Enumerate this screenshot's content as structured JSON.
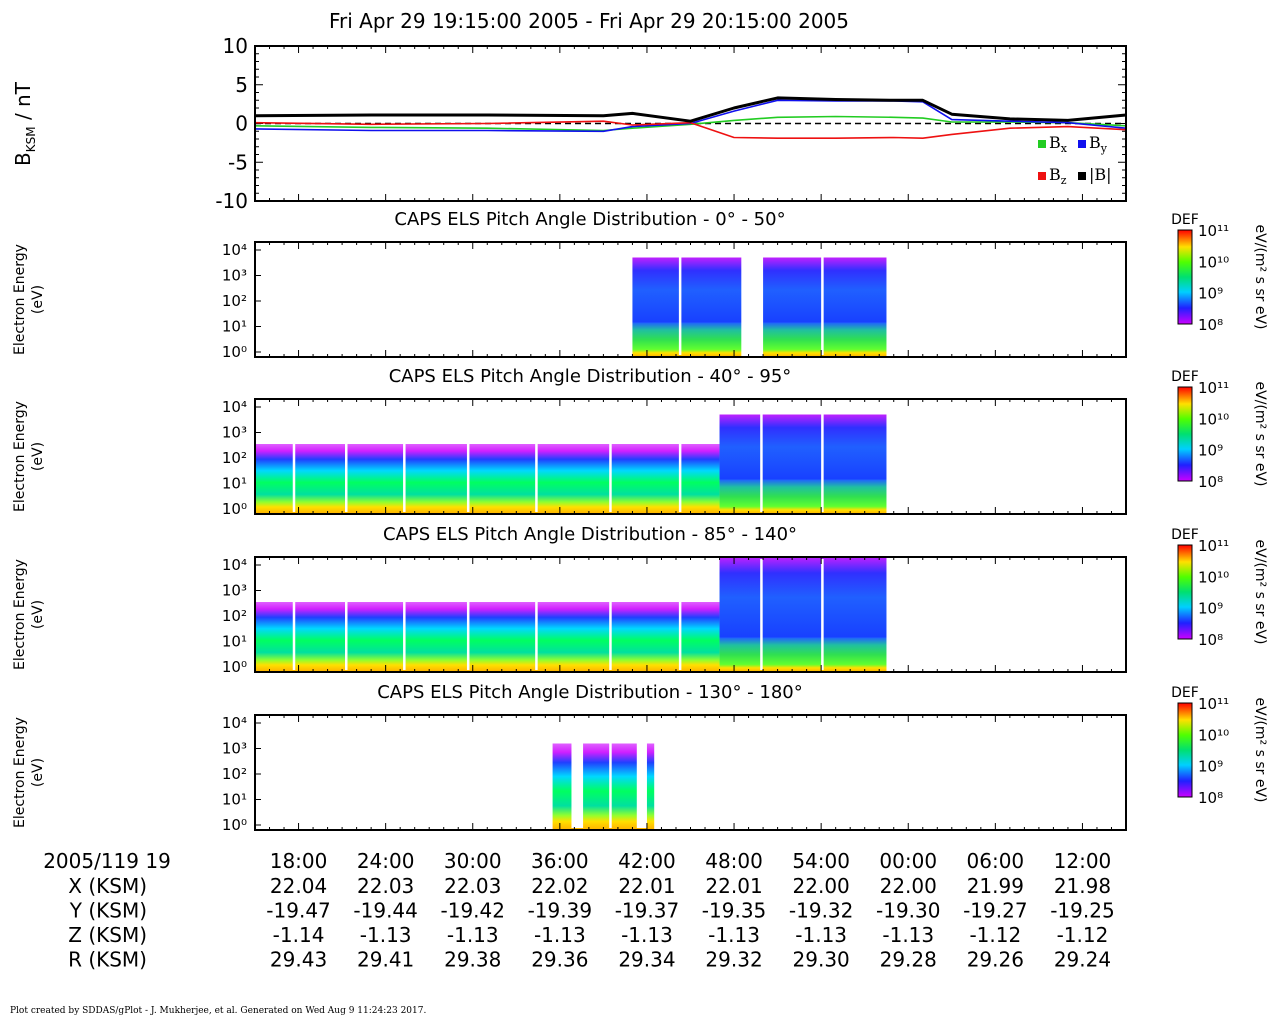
{
  "title": "Fri Apr 29 19:15:00 2005 - Fri Apr 29 20:15:00 2005",
  "footer": "Plot created by SDDAS/gPlot - J. Mukherjee, et al.  Generated on Wed Aug 9 11:24:23 2017.",
  "colors": {
    "bx": "#22cc22",
    "by": "#1010ee",
    "bz": "#ee1111",
    "bmag": "#000000"
  },
  "chart_data": [
    {
      "type": "line",
      "ylabel_main": "B",
      "ylabel_sub": "KSM",
      "ylabel_unit": " / nT",
      "ylim": [
        -10,
        10
      ],
      "yticks": [
        10,
        5,
        0,
        -5,
        -10
      ],
      "x_minutes": [
        0,
        8,
        16,
        24,
        26,
        30,
        33,
        36,
        40,
        44,
        46,
        48,
        52,
        56,
        60
      ],
      "series": [
        {
          "name": "B",
          "sub": "x",
          "values": [
            -0.3,
            -0.5,
            -0.6,
            -0.9,
            -0.6,
            -0.1,
            0.4,
            0.8,
            0.9,
            0.8,
            0.7,
            0.2,
            0.2,
            0.1,
            -0.3
          ]
        },
        {
          "name": "B",
          "sub": "y",
          "values": [
            -0.7,
            -0.9,
            -0.9,
            -1.0,
            -0.4,
            0.0,
            1.6,
            3.0,
            2.9,
            2.9,
            2.8,
            0.5,
            0.3,
            0.1,
            -0.6
          ]
        },
        {
          "name": "B",
          "sub": "z",
          "values": [
            0.1,
            -0.1,
            0.0,
            0.3,
            -0.2,
            0.1,
            -1.8,
            -1.9,
            -1.9,
            -1.8,
            -1.9,
            -1.4,
            -0.6,
            -0.4,
            -0.8
          ]
        },
        {
          "name": "|B|",
          "sub": "",
          "values": [
            1.0,
            1.1,
            1.1,
            1.0,
            1.3,
            0.3,
            2.0,
            3.3,
            3.1,
            3.0,
            3.0,
            1.2,
            0.6,
            0.4,
            1.1
          ]
        }
      ]
    },
    {
      "type": "heatmap",
      "title": "CAPS ELS Pitch Angle Distribution - 0° - 50°",
      "ylabel": [
        "Electron Energy",
        "(eV)"
      ],
      "yticks": [
        "10⁴",
        "10³",
        "10²",
        "10¹",
        "10⁰"
      ],
      "colorbar": {
        "label": "DEF",
        "unit": "eV/(m² s sr eV)",
        "ticks": [
          "10¹¹",
          "10¹⁰",
          "10⁹",
          "10⁸"
        ]
      },
      "data_intervals_min": [
        [
          26.0,
          33.5
        ],
        [
          35.0,
          43.5
        ]
      ]
    },
    {
      "type": "heatmap",
      "title": "CAPS ELS Pitch Angle Distribution - 40° - 95°",
      "ylabel": [
        "Electron Energy",
        "(eV)"
      ],
      "yticks": [
        "10⁴",
        "10³",
        "10²",
        "10¹",
        "10⁰"
      ],
      "colorbar": {
        "label": "DEF",
        "unit": "eV/(m² s sr eV)",
        "ticks": [
          "10¹¹",
          "10¹⁰",
          "10⁹",
          "10⁸"
        ]
      },
      "data_intervals_min": [
        [
          0,
          43.5
        ]
      ]
    },
    {
      "type": "heatmap",
      "title": "CAPS ELS Pitch Angle Distribution - 85° - 140°",
      "ylabel": [
        "Electron Energy",
        "(eV)"
      ],
      "yticks": [
        "10⁴",
        "10³",
        "10²",
        "10¹",
        "10⁰"
      ],
      "colorbar": {
        "label": "DEF",
        "unit": "eV/(m² s sr eV)",
        "ticks": [
          "10¹¹",
          "10¹⁰",
          "10⁹",
          "10⁸"
        ]
      },
      "data_intervals_min": [
        [
          0,
          43.5
        ]
      ]
    },
    {
      "type": "heatmap",
      "title": "CAPS ELS Pitch Angle Distribution - 130° - 180°",
      "ylabel": [
        "Electron Energy",
        "(eV)"
      ],
      "yticks": [
        "10⁴",
        "10³",
        "10²",
        "10¹",
        "10⁰"
      ],
      "colorbar": {
        "label": "DEF",
        "unit": "eV/(m² s sr eV)",
        "ticks": [
          "10¹¹",
          "10¹⁰",
          "10⁹",
          "10⁸"
        ]
      },
      "data_intervals_min": [
        [
          20.5,
          27.5
        ]
      ]
    }
  ],
  "time_axis": {
    "start_label": "2005/119 19",
    "tick_labels": [
      "18:00",
      "24:00",
      "30:00",
      "36:00",
      "42:00",
      "48:00",
      "54:00",
      "00:00",
      "06:00",
      "12:00"
    ],
    "rows": [
      {
        "label": "X (KSM)",
        "values": [
          "22.04",
          "22.03",
          "22.03",
          "22.02",
          "22.01",
          "22.01",
          "22.00",
          "22.00",
          "21.99",
          "21.98"
        ]
      },
      {
        "label": "Y (KSM)",
        "values": [
          "-19.47",
          "-19.44",
          "-19.42",
          "-19.39",
          "-19.37",
          "-19.35",
          "-19.32",
          "-19.30",
          "-19.27",
          "-19.25"
        ]
      },
      {
        "label": "Z (KSM)",
        "values": [
          "-1.14",
          "-1.13",
          "-1.13",
          "-1.13",
          "-1.13",
          "-1.13",
          "-1.13",
          "-1.13",
          "-1.12",
          "-1.12"
        ]
      },
      {
        "label": "R (KSM)",
        "values": [
          "29.43",
          "29.41",
          "29.38",
          "29.36",
          "29.34",
          "29.32",
          "29.30",
          "29.28",
          "29.26",
          "29.24"
        ]
      }
    ]
  }
}
